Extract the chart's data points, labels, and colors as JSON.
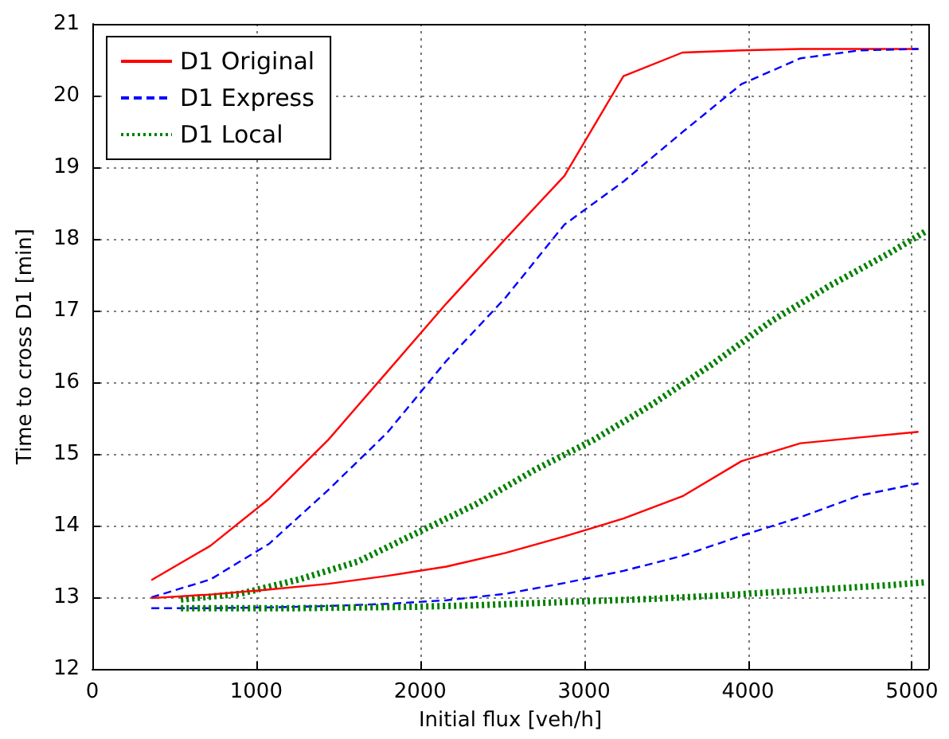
{
  "chart_data": {
    "type": "line",
    "xlabel": "Initial flux [veh/h]",
    "ylabel": "Time to cross D1 [min]",
    "xlim": [
      0,
      5100
    ],
    "xticks": [
      0,
      1000,
      2000,
      3000,
      4000,
      5000
    ],
    "ylim": [
      12,
      21
    ],
    "yticks": [
      12,
      13,
      14,
      15,
      16,
      17,
      18,
      19,
      20,
      21
    ],
    "grid": true,
    "legend": "top left",
    "marker": "none",
    "series": [
      {
        "name": "D1 Original",
        "color": "#ff0000",
        "line_style": "solid",
        "x": [
          360,
          720,
          1080,
          1440,
          1800,
          2160,
          2520,
          2880,
          3240,
          3600,
          3960,
          4320,
          4680,
          5040
        ],
        "values": [
          13.24,
          13.72,
          14.38,
          15.2,
          16.15,
          17.1,
          18.0,
          18.88,
          20.27,
          20.6,
          20.63,
          20.65,
          20.65,
          20.65
        ]
      },
      {
        "name": "D1 Express",
        "color": "#0000ff",
        "line_style": "dashed",
        "x": [
          360,
          720,
          1080,
          1440,
          1800,
          2160,
          2520,
          2880,
          3240,
          3600,
          3960,
          4320,
          4680,
          5040
        ],
        "values": [
          13.0,
          13.25,
          13.75,
          14.5,
          15.3,
          16.3,
          17.18,
          18.2,
          18.8,
          19.49,
          20.16,
          20.52,
          20.63,
          20.65
        ]
      },
      {
        "name": "D1 Local",
        "color": "#008000",
        "line_style": "dotted",
        "x": [
          540,
          900,
          1260,
          1620,
          1980,
          2340,
          2700,
          3060,
          3420,
          3780,
          4140,
          4500,
          4860,
          5080
        ],
        "values": [
          12.97,
          13.05,
          13.25,
          13.5,
          13.9,
          14.3,
          14.78,
          15.2,
          15.7,
          16.25,
          16.85,
          17.35,
          17.8,
          18.1
        ]
      },
      {
        "color": "#ff0000",
        "line_style": "solid",
        "x": [
          360,
          720,
          1080,
          1440,
          1800,
          2160,
          2520,
          2880,
          3240,
          3600,
          3960,
          4320,
          4680,
          5040
        ],
        "values": [
          12.99,
          13.04,
          13.11,
          13.19,
          13.3,
          13.43,
          13.62,
          13.85,
          14.1,
          14.41,
          14.9,
          15.15,
          15.23,
          15.31
        ]
      },
      {
        "color": "#0000ff",
        "line_style": "dashed",
        "x": [
          360,
          720,
          1080,
          1440,
          1800,
          2160,
          2520,
          2880,
          3240,
          3600,
          3960,
          4320,
          4680,
          5040
        ],
        "values": [
          12.85,
          12.85,
          12.86,
          12.88,
          12.91,
          12.96,
          13.05,
          13.2,
          13.37,
          13.58,
          13.86,
          14.12,
          14.42,
          14.59
        ]
      },
      {
        "color": "#008000",
        "line_style": "dotted",
        "x": [
          540,
          900,
          1260,
          1620,
          1980,
          2340,
          2700,
          3060,
          3420,
          3780,
          4140,
          4500,
          4860,
          5080
        ],
        "values": [
          12.85,
          12.85,
          12.85,
          12.86,
          12.87,
          12.89,
          12.92,
          12.95,
          12.98,
          13.02,
          13.07,
          13.12,
          13.17,
          13.21
        ]
      }
    ]
  }
}
